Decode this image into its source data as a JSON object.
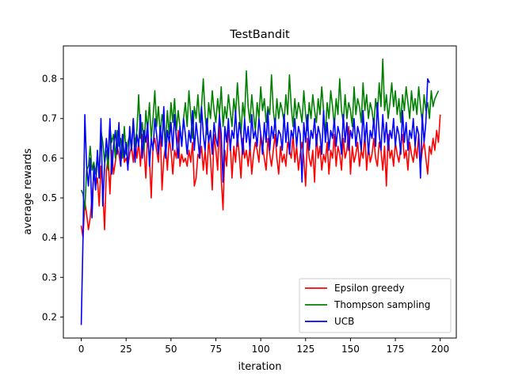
{
  "chart_data": {
    "type": "line",
    "title": "TestBandit",
    "xlabel": "iteration",
    "ylabel": "average rewards",
    "xlim": [
      -9.95,
      208.95
    ],
    "ylim": [
      0.147,
      0.883
    ],
    "xticks": [
      0,
      25,
      50,
      75,
      100,
      125,
      150,
      175,
      200
    ],
    "yticks": [
      0.2,
      0.3,
      0.4,
      0.5,
      0.6,
      0.7,
      0.8
    ],
    "xtick_labels": [
      "0",
      "25",
      "50",
      "75",
      "100",
      "125",
      "150",
      "175",
      "200"
    ],
    "ytick_labels": [
      "0.2",
      "0.3",
      "0.4",
      "0.5",
      "0.6",
      "0.7",
      "0.8"
    ],
    "grid": false,
    "legend_position": "lower right",
    "series": [
      {
        "name": "Epsilon greedy",
        "color": "#ff0000",
        "values": [
          0.43,
          0.4,
          0.49,
          0.46,
          0.42,
          0.45,
          0.5,
          0.56,
          0.53,
          0.55,
          0.48,
          0.58,
          0.52,
          0.42,
          0.57,
          0.6,
          0.51,
          0.62,
          0.56,
          0.59,
          0.63,
          0.61,
          0.58,
          0.66,
          0.59,
          0.6,
          0.58,
          0.61,
          0.63,
          0.59,
          0.65,
          0.6,
          0.64,
          0.58,
          0.66,
          0.62,
          0.55,
          0.66,
          0.6,
          0.5,
          0.63,
          0.65,
          0.62,
          0.59,
          0.68,
          0.52,
          0.6,
          0.63,
          0.57,
          0.65,
          0.62,
          0.56,
          0.62,
          0.6,
          0.67,
          0.58,
          0.61,
          0.59,
          0.6,
          0.58,
          0.62,
          0.59,
          0.64,
          0.53,
          0.55,
          0.61,
          0.6,
          0.63,
          0.57,
          0.62,
          0.56,
          0.65,
          0.6,
          0.52,
          0.66,
          0.62,
          0.57,
          0.7,
          0.55,
          0.47,
          0.62,
          0.58,
          0.67,
          0.64,
          0.55,
          0.63,
          0.59,
          0.66,
          0.61,
          0.55,
          0.65,
          0.6,
          0.62,
          0.58,
          0.63,
          0.56,
          0.61,
          0.64,
          0.62,
          0.59,
          0.66,
          0.63,
          0.6,
          0.57,
          0.65,
          0.61,
          0.58,
          0.62,
          0.66,
          0.6,
          0.56,
          0.63,
          0.59,
          0.61,
          0.58,
          0.64,
          0.62,
          0.6,
          0.66,
          0.59,
          0.63,
          0.57,
          0.61,
          0.64,
          0.6,
          0.53,
          0.65,
          0.6,
          0.58,
          0.62,
          0.54,
          0.66,
          0.6,
          0.63,
          0.57,
          0.61,
          0.59,
          0.64,
          0.56,
          0.62,
          0.6,
          0.66,
          0.58,
          0.63,
          0.61,
          0.57,
          0.65,
          0.6,
          0.62,
          0.68,
          0.56,
          0.63,
          0.59,
          0.61,
          0.64,
          0.58,
          0.62,
          0.6,
          0.66,
          0.57,
          0.63,
          0.59,
          0.61,
          0.65,
          0.6,
          0.58,
          0.64,
          0.62,
          0.57,
          0.63,
          0.53,
          0.66,
          0.6,
          0.62,
          0.58,
          0.64,
          0.61,
          0.59,
          0.63,
          0.66,
          0.6,
          0.62,
          0.57,
          0.64,
          0.61,
          0.59,
          0.63,
          0.6,
          0.66,
          0.58,
          0.62,
          0.64,
          0.6,
          0.56,
          0.63,
          0.61,
          0.65,
          0.62,
          0.67,
          0.64,
          0.71
        ]
      },
      {
        "name": "Thompson sampling",
        "color": "#008000",
        "values": [
          0.52,
          0.51,
          0.47,
          0.57,
          0.58,
          0.63,
          0.57,
          0.59,
          0.56,
          0.61,
          0.55,
          0.67,
          0.64,
          0.59,
          0.62,
          0.57,
          0.68,
          0.64,
          0.66,
          0.6,
          0.67,
          0.63,
          0.65,
          0.6,
          0.68,
          0.61,
          0.64,
          0.66,
          0.62,
          0.7,
          0.63,
          0.67,
          0.76,
          0.65,
          0.69,
          0.62,
          0.72,
          0.67,
          0.74,
          0.65,
          0.7,
          0.77,
          0.68,
          0.73,
          0.66,
          0.71,
          0.68,
          0.64,
          0.72,
          0.66,
          0.74,
          0.69,
          0.75,
          0.67,
          0.72,
          0.68,
          0.63,
          0.7,
          0.74,
          0.68,
          0.77,
          0.71,
          0.65,
          0.73,
          0.7,
          0.76,
          0.69,
          0.73,
          0.8,
          0.71,
          0.66,
          0.74,
          0.7,
          0.77,
          0.72,
          0.69,
          0.75,
          0.71,
          0.78,
          0.68,
          0.73,
          0.7,
          0.76,
          0.72,
          0.68,
          0.75,
          0.71,
          0.79,
          0.72,
          0.66,
          0.74,
          0.7,
          0.82,
          0.73,
          0.69,
          0.76,
          0.71,
          0.67,
          0.74,
          0.7,
          0.78,
          0.72,
          0.75,
          0.69,
          0.73,
          0.71,
          0.81,
          0.72,
          0.68,
          0.75,
          0.7,
          0.74,
          0.72,
          0.69,
          0.76,
          0.71,
          0.81,
          0.73,
          0.68,
          0.75,
          0.7,
          0.74,
          0.72,
          0.69,
          0.77,
          0.71,
          0.67,
          0.74,
          0.7,
          0.76,
          0.72,
          0.69,
          0.75,
          0.71,
          0.78,
          0.72,
          0.66,
          0.74,
          0.7,
          0.77,
          0.73,
          0.68,
          0.75,
          0.71,
          0.8,
          0.72,
          0.69,
          0.76,
          0.7,
          0.74,
          0.72,
          0.68,
          0.78,
          0.71,
          0.75,
          0.73,
          0.69,
          0.79,
          0.72,
          0.76,
          0.7,
          0.74,
          0.72,
          0.68,
          0.75,
          0.71,
          0.79,
          0.73,
          0.85,
          0.72,
          0.76,
          0.7,
          0.74,
          0.79,
          0.73,
          0.77,
          0.71,
          0.75,
          0.69,
          0.76,
          0.72,
          0.78,
          0.74,
          0.7,
          0.77,
          0.72,
          0.75,
          0.71,
          0.78,
          0.73,
          0.69,
          0.76,
          0.72,
          0.74,
          0.7,
          0.77,
          0.73,
          0.75,
          0.76,
          0.77
        ]
      },
      {
        "name": "UCB",
        "color": "#0000ff",
        "values": [
          0.18,
          0.4,
          0.71,
          0.58,
          0.53,
          0.6,
          0.45,
          0.58,
          0.52,
          0.62,
          0.55,
          0.7,
          0.48,
          0.58,
          0.65,
          0.6,
          0.7,
          0.56,
          0.63,
          0.67,
          0.61,
          0.69,
          0.58,
          0.66,
          0.6,
          0.64,
          0.57,
          0.68,
          0.62,
          0.7,
          0.59,
          0.66,
          0.63,
          0.71,
          0.6,
          0.67,
          0.64,
          0.69,
          0.58,
          0.65,
          0.62,
          0.7,
          0.66,
          0.61,
          0.68,
          0.63,
          0.73,
          0.6,
          0.67,
          0.64,
          0.69,
          0.62,
          0.71,
          0.65,
          0.6,
          0.68,
          0.63,
          0.7,
          0.66,
          0.61,
          0.67,
          0.64,
          0.72,
          0.62,
          0.69,
          0.65,
          0.6,
          0.73,
          0.66,
          0.62,
          0.7,
          0.64,
          0.67,
          0.61,
          0.69,
          0.65,
          0.63,
          0.71,
          0.66,
          0.54,
          0.68,
          0.64,
          0.7,
          0.62,
          0.67,
          0.65,
          0.72,
          0.63,
          0.69,
          0.66,
          0.61,
          0.7,
          0.64,
          0.68,
          0.62,
          0.71,
          0.65,
          0.67,
          0.63,
          0.7,
          0.66,
          0.61,
          0.69,
          0.64,
          0.72,
          0.62,
          0.68,
          0.65,
          0.7,
          0.63,
          0.67,
          0.66,
          0.62,
          0.71,
          0.64,
          0.69,
          0.61,
          0.67,
          0.65,
          0.7,
          0.63,
          0.68,
          0.66,
          0.54,
          0.69,
          0.64,
          0.71,
          0.62,
          0.67,
          0.65,
          0.7,
          0.63,
          0.68,
          0.66,
          0.61,
          0.72,
          0.64,
          0.69,
          0.62,
          0.67,
          0.65,
          0.7,
          0.63,
          0.68,
          0.66,
          0.61,
          0.71,
          0.64,
          0.69,
          0.62,
          0.67,
          0.65,
          0.7,
          0.63,
          0.68,
          0.66,
          0.62,
          0.72,
          0.64,
          0.69,
          0.61,
          0.67,
          0.65,
          0.7,
          0.63,
          0.74,
          0.66,
          0.62,
          0.71,
          0.64,
          0.69,
          0.62,
          0.67,
          0.65,
          0.7,
          0.63,
          0.68,
          0.66,
          0.61,
          0.72,
          0.64,
          0.69,
          0.62,
          0.67,
          0.65,
          0.7,
          0.63,
          0.68,
          0.66,
          0.55,
          0.71,
          0.64,
          0.69,
          0.8,
          0.79
        ]
      }
    ]
  }
}
